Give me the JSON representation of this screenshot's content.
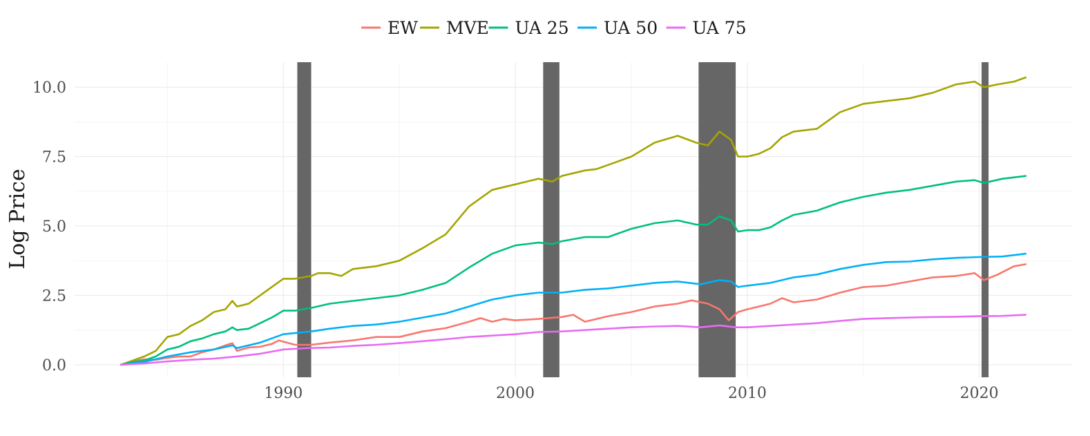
{
  "chart_data": {
    "type": "line",
    "title": "",
    "xlabel": "",
    "ylabel": "Log Price",
    "xlim": [
      1981.0,
      2024.0
    ],
    "ylim": [
      -0.45,
      10.9
    ],
    "x_ticks": [
      1990,
      2000,
      2010,
      2020
    ],
    "x_tick_labels": [
      "1990",
      "2000",
      "2010",
      "2020"
    ],
    "y_ticks": [
      0.0,
      2.5,
      5.0,
      7.5,
      10.0
    ],
    "y_tick_labels": [
      "0.0",
      "2.5",
      "5.0",
      "7.5",
      "10.0"
    ],
    "grid": true,
    "legend_position": "top",
    "recession_periods": [
      {
        "start": 1990.6,
        "end": 1991.2
      },
      {
        "start": 2001.2,
        "end": 2001.9
      },
      {
        "start": 2007.9,
        "end": 2009.5
      },
      {
        "start": 2020.1,
        "end": 2020.4
      }
    ],
    "recession_color": "#666666",
    "series": [
      {
        "name": "EW",
        "color": "#F8766D",
        "points": [
          [
            1983.0,
            0.0
          ],
          [
            1983.5,
            0.12
          ],
          [
            1984.0,
            0.2
          ],
          [
            1984.5,
            0.18
          ],
          [
            1985.0,
            0.25
          ],
          [
            1985.5,
            0.3
          ],
          [
            1986.0,
            0.3
          ],
          [
            1986.5,
            0.45
          ],
          [
            1987.0,
            0.55
          ],
          [
            1987.5,
            0.7
          ],
          [
            1987.8,
            0.78
          ],
          [
            1988.0,
            0.5
          ],
          [
            1988.5,
            0.62
          ],
          [
            1989.0,
            0.65
          ],
          [
            1989.5,
            0.75
          ],
          [
            1989.8,
            0.88
          ],
          [
            1990.5,
            0.72
          ],
          [
            1991.2,
            0.72
          ],
          [
            1992.0,
            0.8
          ],
          [
            1993.0,
            0.88
          ],
          [
            1994.0,
            1.0
          ],
          [
            1995.0,
            1.0
          ],
          [
            1996.0,
            1.2
          ],
          [
            1997.0,
            1.32
          ],
          [
            1998.0,
            1.55
          ],
          [
            1998.5,
            1.68
          ],
          [
            1999.0,
            1.55
          ],
          [
            1999.5,
            1.65
          ],
          [
            2000.0,
            1.6
          ],
          [
            2001.0,
            1.65
          ],
          [
            2002.0,
            1.72
          ],
          [
            2002.5,
            1.8
          ],
          [
            2003.0,
            1.55
          ],
          [
            2004.0,
            1.75
          ],
          [
            2005.0,
            1.9
          ],
          [
            2006.0,
            2.1
          ],
          [
            2007.0,
            2.2
          ],
          [
            2007.6,
            2.32
          ],
          [
            2008.3,
            2.2
          ],
          [
            2008.8,
            2.0
          ],
          [
            2009.2,
            1.6
          ],
          [
            2009.6,
            1.9
          ],
          [
            2010.0,
            2.0
          ],
          [
            2010.5,
            2.1
          ],
          [
            2011.0,
            2.2
          ],
          [
            2011.5,
            2.4
          ],
          [
            2012.0,
            2.25
          ],
          [
            2013.0,
            2.35
          ],
          [
            2014.0,
            2.6
          ],
          [
            2015.0,
            2.8
          ],
          [
            2016.0,
            2.85
          ],
          [
            2017.0,
            3.0
          ],
          [
            2018.0,
            3.15
          ],
          [
            2019.0,
            3.2
          ],
          [
            2019.8,
            3.3
          ],
          [
            2020.2,
            3.05
          ],
          [
            2020.8,
            3.25
          ],
          [
            2021.5,
            3.55
          ],
          [
            2022.0,
            3.62
          ]
        ]
      },
      {
        "name": "MVE",
        "color": "#A3A500",
        "points": [
          [
            1983.0,
            0.0
          ],
          [
            1983.5,
            0.15
          ],
          [
            1984.0,
            0.3
          ],
          [
            1984.5,
            0.5
          ],
          [
            1985.0,
            1.0
          ],
          [
            1985.5,
            1.1
          ],
          [
            1986.0,
            1.4
          ],
          [
            1986.5,
            1.6
          ],
          [
            1987.0,
            1.9
          ],
          [
            1987.5,
            2.0
          ],
          [
            1987.8,
            2.3
          ],
          [
            1988.0,
            2.1
          ],
          [
            1988.5,
            2.2
          ],
          [
            1989.0,
            2.5
          ],
          [
            1989.5,
            2.8
          ],
          [
            1990.0,
            3.1
          ],
          [
            1990.5,
            3.1
          ],
          [
            1991.2,
            3.2
          ],
          [
            1991.5,
            3.3
          ],
          [
            1992.0,
            3.3
          ],
          [
            1992.5,
            3.2
          ],
          [
            1993.0,
            3.45
          ],
          [
            1994.0,
            3.55
          ],
          [
            1995.0,
            3.75
          ],
          [
            1996.0,
            4.2
          ],
          [
            1997.0,
            4.7
          ],
          [
            1998.0,
            5.7
          ],
          [
            1999.0,
            6.3
          ],
          [
            2000.0,
            6.5
          ],
          [
            2001.0,
            6.7
          ],
          [
            2001.6,
            6.6
          ],
          [
            2002.0,
            6.8
          ],
          [
            2003.0,
            7.0
          ],
          [
            2003.5,
            7.05
          ],
          [
            2004.0,
            7.2
          ],
          [
            2005.0,
            7.5
          ],
          [
            2006.0,
            8.0
          ],
          [
            2007.0,
            8.25
          ],
          [
            2007.8,
            8.0
          ],
          [
            2008.3,
            7.9
          ],
          [
            2008.8,
            8.4
          ],
          [
            2009.3,
            8.1
          ],
          [
            2009.6,
            7.5
          ],
          [
            2010.0,
            7.5
          ],
          [
            2010.5,
            7.6
          ],
          [
            2011.0,
            7.8
          ],
          [
            2011.5,
            8.2
          ],
          [
            2012.0,
            8.4
          ],
          [
            2013.0,
            8.5
          ],
          [
            2014.0,
            9.1
          ],
          [
            2015.0,
            9.4
          ],
          [
            2016.0,
            9.5
          ],
          [
            2017.0,
            9.6
          ],
          [
            2018.0,
            9.8
          ],
          [
            2019.0,
            10.1
          ],
          [
            2019.8,
            10.2
          ],
          [
            2020.2,
            10.0
          ],
          [
            2020.8,
            10.1
          ],
          [
            2021.5,
            10.2
          ],
          [
            2022.0,
            10.35
          ]
        ]
      },
      {
        "name": "UA 25",
        "color": "#00BF7D",
        "points": [
          [
            1983.0,
            0.0
          ],
          [
            1983.5,
            0.1
          ],
          [
            1984.0,
            0.15
          ],
          [
            1984.5,
            0.3
          ],
          [
            1985.0,
            0.55
          ],
          [
            1985.5,
            0.65
          ],
          [
            1986.0,
            0.85
          ],
          [
            1986.5,
            0.95
          ],
          [
            1987.0,
            1.1
          ],
          [
            1987.5,
            1.2
          ],
          [
            1987.8,
            1.35
          ],
          [
            1988.0,
            1.25
          ],
          [
            1988.5,
            1.3
          ],
          [
            1989.0,
            1.5
          ],
          [
            1989.5,
            1.7
          ],
          [
            1990.0,
            1.95
          ],
          [
            1990.5,
            1.95
          ],
          [
            1991.2,
            2.05
          ],
          [
            1992.0,
            2.2
          ],
          [
            1993.0,
            2.3
          ],
          [
            1994.0,
            2.4
          ],
          [
            1995.0,
            2.5
          ],
          [
            1996.0,
            2.7
          ],
          [
            1997.0,
            2.95
          ],
          [
            1998.0,
            3.5
          ],
          [
            1999.0,
            4.0
          ],
          [
            2000.0,
            4.3
          ],
          [
            2001.0,
            4.4
          ],
          [
            2001.6,
            4.35
          ],
          [
            2002.0,
            4.45
          ],
          [
            2003.0,
            4.6
          ],
          [
            2004.0,
            4.6
          ],
          [
            2005.0,
            4.9
          ],
          [
            2006.0,
            5.1
          ],
          [
            2007.0,
            5.2
          ],
          [
            2007.8,
            5.05
          ],
          [
            2008.3,
            5.05
          ],
          [
            2008.8,
            5.35
          ],
          [
            2009.3,
            5.2
          ],
          [
            2009.6,
            4.8
          ],
          [
            2010.0,
            4.85
          ],
          [
            2010.5,
            4.85
          ],
          [
            2011.0,
            4.95
          ],
          [
            2011.5,
            5.2
          ],
          [
            2012.0,
            5.4
          ],
          [
            2013.0,
            5.55
          ],
          [
            2014.0,
            5.85
          ],
          [
            2015.0,
            6.05
          ],
          [
            2016.0,
            6.2
          ],
          [
            2017.0,
            6.3
          ],
          [
            2018.0,
            6.45
          ],
          [
            2019.0,
            6.6
          ],
          [
            2019.8,
            6.65
          ],
          [
            2020.2,
            6.55
          ],
          [
            2021.0,
            6.7
          ],
          [
            2022.0,
            6.8
          ]
        ]
      },
      {
        "name": "UA 50",
        "color": "#00B0F6",
        "points": [
          [
            1983.0,
            0.0
          ],
          [
            1983.5,
            0.05
          ],
          [
            1984.0,
            0.1
          ],
          [
            1984.5,
            0.2
          ],
          [
            1985.0,
            0.3
          ],
          [
            1986.0,
            0.45
          ],
          [
            1987.0,
            0.55
          ],
          [
            1987.8,
            0.7
          ],
          [
            1988.0,
            0.6
          ],
          [
            1989.0,
            0.8
          ],
          [
            1990.0,
            1.1
          ],
          [
            1991.2,
            1.2
          ],
          [
            1992.0,
            1.3
          ],
          [
            1993.0,
            1.4
          ],
          [
            1994.0,
            1.45
          ],
          [
            1995.0,
            1.55
          ],
          [
            1996.0,
            1.7
          ],
          [
            1997.0,
            1.85
          ],
          [
            1998.0,
            2.1
          ],
          [
            1999.0,
            2.35
          ],
          [
            2000.0,
            2.5
          ],
          [
            2001.0,
            2.6
          ],
          [
            2002.0,
            2.6
          ],
          [
            2003.0,
            2.7
          ],
          [
            2004.0,
            2.75
          ],
          [
            2005.0,
            2.85
          ],
          [
            2006.0,
            2.95
          ],
          [
            2007.0,
            3.0
          ],
          [
            2008.0,
            2.9
          ],
          [
            2008.8,
            3.05
          ],
          [
            2009.3,
            3.0
          ],
          [
            2009.6,
            2.8
          ],
          [
            2010.0,
            2.85
          ],
          [
            2011.0,
            2.95
          ],
          [
            2012.0,
            3.15
          ],
          [
            2013.0,
            3.25
          ],
          [
            2014.0,
            3.45
          ],
          [
            2015.0,
            3.6
          ],
          [
            2016.0,
            3.7
          ],
          [
            2017.0,
            3.72
          ],
          [
            2018.0,
            3.8
          ],
          [
            2019.0,
            3.85
          ],
          [
            2020.0,
            3.88
          ],
          [
            2021.0,
            3.9
          ],
          [
            2022.0,
            4.0
          ]
        ]
      },
      {
        "name": "UA 75",
        "color": "#E76BF3",
        "points": [
          [
            1983.0,
            0.0
          ],
          [
            1984.0,
            0.05
          ],
          [
            1985.0,
            0.12
          ],
          [
            1986.0,
            0.18
          ],
          [
            1987.0,
            0.22
          ],
          [
            1988.0,
            0.3
          ],
          [
            1989.0,
            0.4
          ],
          [
            1990.0,
            0.55
          ],
          [
            1991.0,
            0.6
          ],
          [
            1992.0,
            0.62
          ],
          [
            1993.0,
            0.68
          ],
          [
            1994.0,
            0.72
          ],
          [
            1995.0,
            0.78
          ],
          [
            1996.0,
            0.85
          ],
          [
            1997.0,
            0.92
          ],
          [
            1998.0,
            1.0
          ],
          [
            1999.0,
            1.05
          ],
          [
            2000.0,
            1.1
          ],
          [
            2001.0,
            1.18
          ],
          [
            2002.0,
            1.2
          ],
          [
            2003.0,
            1.25
          ],
          [
            2004.0,
            1.3
          ],
          [
            2005.0,
            1.35
          ],
          [
            2006.0,
            1.38
          ],
          [
            2007.0,
            1.4
          ],
          [
            2008.0,
            1.35
          ],
          [
            2008.8,
            1.42
          ],
          [
            2009.5,
            1.35
          ],
          [
            2010.0,
            1.35
          ],
          [
            2011.0,
            1.4
          ],
          [
            2012.0,
            1.45
          ],
          [
            2013.0,
            1.5
          ],
          [
            2014.0,
            1.58
          ],
          [
            2015.0,
            1.65
          ],
          [
            2016.0,
            1.68
          ],
          [
            2017.0,
            1.7
          ],
          [
            2018.0,
            1.72
          ],
          [
            2019.0,
            1.73
          ],
          [
            2020.0,
            1.75
          ],
          [
            2021.0,
            1.76
          ],
          [
            2022.0,
            1.8
          ]
        ]
      }
    ]
  }
}
